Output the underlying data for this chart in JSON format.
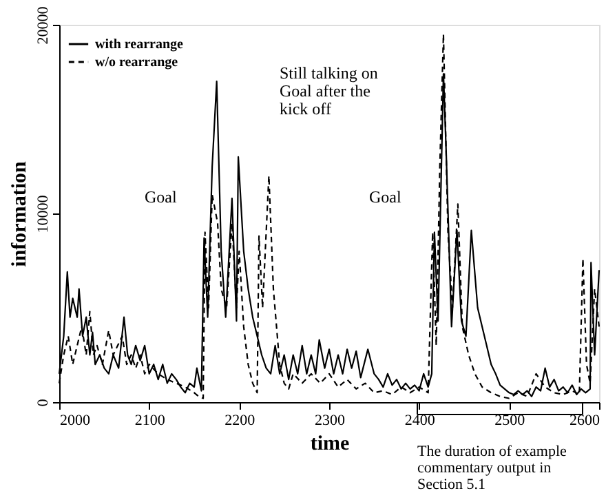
{
  "chart_data": {
    "type": "line",
    "xlabel": "time",
    "ylabel": "information",
    "xlim": [
      2000,
      2600
    ],
    "xticks": [
      2000,
      2100,
      2200,
      2300,
      2400,
      2500,
      2600
    ],
    "ylim": [
      0,
      20000
    ],
    "yticks": [
      0,
      10000,
      20000
    ],
    "grid": false,
    "legend": "top left",
    "series": [
      {
        "name": "with rearrange",
        "color": "#000000",
        "line_style": "solid",
        "x": [
          2000,
          2005,
          2009,
          2012,
          2015,
          2020,
          2022,
          2026,
          2030,
          2034,
          2037,
          2040,
          2045,
          2050,
          2055,
          2060,
          2066,
          2072,
          2076,
          2080,
          2085,
          2090,
          2095,
          2100,
          2105,
          2110,
          2115,
          2120,
          2125,
          2130,
          2135,
          2140,
          2145,
          2150,
          2153,
          2158,
          2161,
          2165,
          2170,
          2175,
          2180,
          2185,
          2192,
          2197,
          2199,
          2205,
          2210,
          2215,
          2220,
          2225,
          2230,
          2235,
          2240,
          2245,
          2250,
          2255,
          2260,
          2265,
          2270,
          2275,
          2280,
          2285,
          2289,
          2295,
          2300,
          2305,
          2310,
          2315,
          2320,
          2325,
          2330,
          2335,
          2343,
          2350,
          2355,
          2360,
          2365,
          2370,
          2375,
          2380,
          2385,
          2390,
          2395,
          2400,
          2405,
          2410,
          2414,
          2417,
          2421,
          2427,
          2430,
          2436,
          2442,
          2447,
          2452,
          2458,
          2465,
          2470,
          2475,
          2480,
          2485,
          2490,
          2495,
          2500,
          2505,
          2510,
          2515,
          2520,
          2525,
          2530,
          2535,
          2540,
          2545,
          2550,
          2555,
          2560,
          2565,
          2570,
          2575,
          2580,
          2585,
          2590,
          2591,
          2595,
          2600
        ],
        "values": [
          1500,
          3500,
          6900,
          4500,
          5500,
          4500,
          6000,
          3500,
          4500,
          2500,
          3700,
          2000,
          2500,
          1800,
          1500,
          2500,
          1800,
          4500,
          2500,
          2000,
          3000,
          2200,
          3000,
          1500,
          2000,
          1200,
          2000,
          1000,
          1500,
          1200,
          800,
          500,
          1000,
          800,
          1800,
          600,
          8700,
          4500,
          12500,
          17000,
          8000,
          4500,
          10800,
          4300,
          13000,
          8000,
          6000,
          4500,
          3500,
          2500,
          1800,
          1500,
          3000,
          1500,
          2500,
          1200,
          2500,
          1500,
          3000,
          1500,
          2500,
          1500,
          3300,
          1800,
          2800,
          1500,
          2500,
          1500,
          2800,
          1800,
          2700,
          1300,
          2800,
          1500,
          1200,
          800,
          1500,
          900,
          1200,
          700,
          1000,
          700,
          900,
          600,
          1500,
          800,
          1500,
          9000,
          4300,
          17400,
          13300,
          4000,
          9100,
          4300,
          3500,
          9100,
          5000,
          4000,
          3000,
          2000,
          1500,
          900,
          700,
          500,
          400,
          600,
          400,
          600,
          300,
          800,
          600,
          1800,
          800,
          1200,
          600,
          800,
          500,
          900,
          400,
          700,
          500,
          700,
          7400,
          2500,
          7000
        ]
      },
      {
        "name": "w/o rearrange",
        "color": "#000000",
        "line_style": "dashed",
        "x": [
          2000,
          2005,
          2010,
          2015,
          2020,
          2025,
          2030,
          2034,
          2038,
          2042,
          2048,
          2055,
          2060,
          2065,
          2070,
          2075,
          2080,
          2085,
          2090,
          2095,
          2100,
          2110,
          2120,
          2130,
          2140,
          2150,
          2155,
          2160,
          2162,
          2166,
          2170,
          2176,
          2180,
          2186,
          2192,
          2197,
          2200,
          2205,
          2210,
          2215,
          2220,
          2222,
          2226,
          2233,
          2238,
          2245,
          2250,
          2255,
          2260,
          2270,
          2280,
          2290,
          2300,
          2310,
          2320,
          2330,
          2340,
          2350,
          2360,
          2370,
          2380,
          2390,
          2400,
          2410,
          2415,
          2419,
          2423,
          2427,
          2432,
          2437,
          2443,
          2448,
          2455,
          2462,
          2470,
          2480,
          2490,
          2500,
          2510,
          2520,
          2530,
          2540,
          2550,
          2560,
          2570,
          2578,
          2582,
          2586,
          2590,
          2595,
          2600
        ],
        "values": [
          1000,
          2500,
          3500,
          2000,
          3000,
          4000,
          2500,
          4800,
          2500,
          3000,
          2000,
          3800,
          2500,
          3000,
          3500,
          2000,
          2500,
          1800,
          2500,
          1500,
          2000,
          1500,
          1200,
          1000,
          800,
          500,
          300,
          200,
          9000,
          5000,
          11000,
          9500,
          6000,
          5000,
          9500,
          5000,
          8000,
          4000,
          2000,
          1000,
          500,
          8800,
          5000,
          12000,
          6000,
          2000,
          1000,
          700,
          1500,
          1000,
          1500,
          1000,
          1500,
          800,
          1200,
          700,
          1000,
          500,
          600,
          400,
          800,
          500,
          800,
          500,
          9000,
          3000,
          12500,
          19500,
          9000,
          5000,
          10500,
          4000,
          2500,
          1500,
          800,
          500,
          300,
          200,
          500,
          300,
          1500,
          800,
          500,
          400,
          600,
          400,
          7600,
          2000,
          1000,
          6000,
          4000
        ]
      }
    ],
    "annotations": [
      "Goal",
      "Still talking on Goal after the kick off",
      "Goal",
      "The duration of example commentary output in Section 5.1"
    ]
  }
}
